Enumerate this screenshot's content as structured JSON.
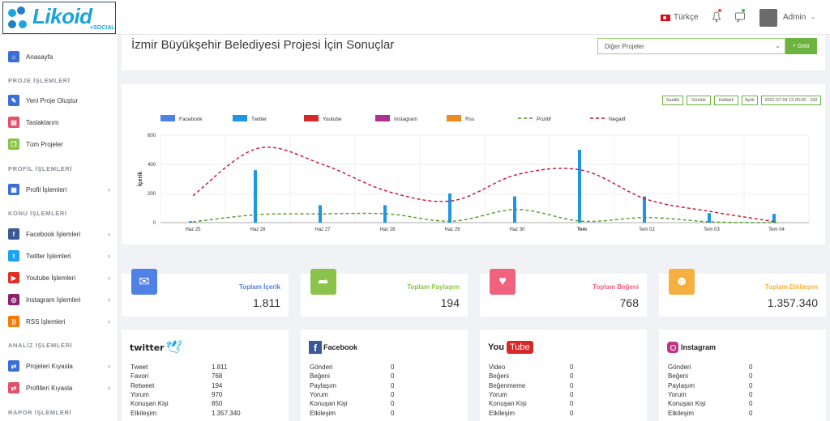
{
  "brand": {
    "name": "Likoid",
    "sub": "+SOCIAL"
  },
  "topbar": {
    "language": "Türkçe",
    "user": "Admin"
  },
  "sidebar": {
    "home": "Anasayfa",
    "sections": {
      "proje": "PROJE İŞLEMLERİ",
      "profil": "PROFİL İŞLEMLERİ",
      "konu": "KONU İŞLEMLERİ",
      "analiz": "ANALİZ İŞLEMLERİ",
      "rapor": "RAPOR İŞLEMLERİ"
    },
    "items": {
      "yeni": "Yeni Proje Oluştur",
      "taslak": "Taslaklarım",
      "tum": "Tüm Projeler",
      "profil": "Profil İşlemleri",
      "facebook": "Facebook İşlemleri",
      "twitter": "Twitter İşlemleri",
      "youtube": "Youtube İşlemleri",
      "instagram": "Instagram İşlemleri",
      "rss": "RSS İşlemleri",
      "kiyasla": "Projeleri Kıyasla",
      "pkiyasla": "Profilleri Kıyasla"
    }
  },
  "page": {
    "title": "İzmir Büyükşehir Belediyesi Projesi İçin Sonuçlar",
    "select_value": "Diğer Projeler",
    "go_label": "Getir"
  },
  "range_buttons": [
    "Saatlik",
    "Günlük",
    "Haftalık",
    "Aylık",
    "2022-07-04 12:00:00 - 202"
  ],
  "chart_data": {
    "type": "bar",
    "ylabel": "İçerik",
    "ylim": [
      0,
      600
    ],
    "yticks": [
      0,
      200,
      400,
      600
    ],
    "categories": [
      "Haz 25",
      "Haz 26",
      "Haz 27",
      "Haz 28",
      "Haz 29",
      "Haz 30",
      "Tem",
      "Tem 02",
      "Tem 03",
      "Tem 04"
    ],
    "legend": [
      "Facebook",
      "Twitter",
      "Youtube",
      "Instagram",
      "Rss",
      "Pozitif",
      "Negatif"
    ],
    "colors": {
      "facebook": "#4f81e6",
      "twitter": "#1e96e6",
      "youtube": "#d62828",
      "instagram": "#b0308f",
      "rss": "#ef8a22",
      "pozitif": "#4e9a1f",
      "negatif": "#c8102e"
    },
    "series": [
      {
        "name": "Facebook",
        "values": [
          0,
          0,
          0,
          0,
          0,
          0,
          0,
          0,
          0,
          0
        ]
      },
      {
        "name": "Twitter",
        "values": [
          10,
          360,
          120,
          120,
          200,
          180,
          500,
          180,
          65,
          60
        ]
      },
      {
        "name": "Youtube",
        "values": [
          0,
          0,
          0,
          0,
          0,
          0,
          0,
          0,
          0,
          0
        ]
      },
      {
        "name": "Instagram",
        "values": [
          0,
          0,
          0,
          0,
          0,
          0,
          0,
          0,
          0,
          0
        ]
      },
      {
        "name": "Rss",
        "values": [
          0,
          0,
          0,
          0,
          0,
          0,
          0,
          0,
          0,
          0
        ]
      },
      {
        "name": "Pozitif",
        "type": "line",
        "values": [
          5,
          55,
          60,
          60,
          10,
          90,
          10,
          35,
          5,
          0
        ]
      },
      {
        "name": "Negatif",
        "type": "line",
        "values": [
          185,
          510,
          400,
          215,
          150,
          330,
          360,
          160,
          75,
          5
        ]
      }
    ]
  },
  "stats": [
    {
      "label": "Toplam İçerik",
      "value": "1.811",
      "color": "#4f81e6"
    },
    {
      "label": "Toplam Paylaşım",
      "value": "194",
      "color": "#8bc34a"
    },
    {
      "label": "Toplam Beğeni",
      "value": "768",
      "color": "#f0627e"
    },
    {
      "label": "Toplam Etkileşim",
      "value": "1.357.340",
      "color": "#f5b041"
    }
  ],
  "cards": {
    "twitter": {
      "brand": "twitter",
      "rows": [
        [
          "Tweet",
          "1.811"
        ],
        [
          "Favori",
          "768"
        ],
        [
          "Retweet",
          "194"
        ],
        [
          "Yorum",
          "970"
        ],
        [
          "Konuşan Kişi",
          "850"
        ],
        [
          "Etkileşim",
          "1.357.340"
        ]
      ]
    },
    "facebook": {
      "brand": "Facebook",
      "rows": [
        [
          "Gönderi",
          "0"
        ],
        [
          "Beğeni",
          "0"
        ],
        [
          "Paylaşım",
          "0"
        ],
        [
          "Yorum",
          "0"
        ],
        [
          "Konuşan Kişi",
          "0"
        ],
        [
          "Etkileşim",
          "0"
        ]
      ]
    },
    "youtube": {
      "brand_you": "You",
      "brand_tube": "Tube",
      "rows": [
        [
          "Video",
          "0"
        ],
        [
          "Beğeni",
          "0"
        ],
        [
          "Beğenmeme",
          "0"
        ],
        [
          "Yorum",
          "0"
        ],
        [
          "Konuşan Kişi",
          "0"
        ],
        [
          "Etkileşim",
          "0"
        ]
      ]
    },
    "instagram": {
      "brand": "Instagram",
      "rows": [
        [
          "Gönderi",
          "0"
        ],
        [
          "Beğeni",
          "0"
        ],
        [
          "Paylaşım",
          "0"
        ],
        [
          "Yorum",
          "0"
        ],
        [
          "Konuşan Kişi",
          "0"
        ],
        [
          "Etkileşim",
          "0"
        ]
      ]
    }
  }
}
